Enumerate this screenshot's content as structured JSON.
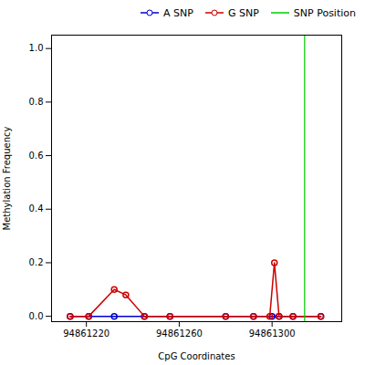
{
  "chart_data": {
    "type": "line",
    "xlabel": "CpG Coordinates",
    "ylabel": "Methylation Frequency",
    "xlim": [
      94861205,
      94861330
    ],
    "ylim": [
      -0.02,
      1.05
    ],
    "xticks": [
      94861220,
      94861260,
      94861300
    ],
    "yticks": [
      {
        "value": 0.0,
        "label": "0.0"
      },
      0.2,
      0.4,
      0.6,
      0.8,
      {
        "value": 1.0,
        "label": "1.0"
      }
    ],
    "grid": false,
    "legend": "upper right",
    "series": [
      {
        "name": "A SNP",
        "color": "#0000cc",
        "marker": "circle",
        "line_style": "solid",
        "x": [
          94861213,
          94861221,
          94861232,
          94861245,
          94861256,
          94861280,
          94861292,
          94861300,
          94861303,
          94861309,
          94861321
        ],
        "values": [
          0.0,
          0.0,
          0.0,
          0.0,
          0.0,
          0.0,
          0.0,
          0.0,
          0.0,
          0.0,
          0.0
        ]
      },
      {
        "name": "G SNP",
        "color": "#cc0000",
        "marker": "circle",
        "line_style": "solid",
        "x": [
          94861213,
          94861221,
          94861232,
          94861237,
          94861245,
          94861256,
          94861280,
          94861292,
          94861299,
          94861301,
          94861303,
          94861309,
          94861321
        ],
        "values": [
          0.0,
          0.0,
          0.1,
          0.08,
          0.0,
          0.0,
          0.0,
          0.0,
          0.0,
          0.2,
          0.0,
          0.0,
          0.0
        ]
      },
      {
        "name": "SNP Position",
        "color": "#00cc00",
        "type": "vline",
        "line_style": "solid",
        "x": 94861314
      }
    ]
  }
}
